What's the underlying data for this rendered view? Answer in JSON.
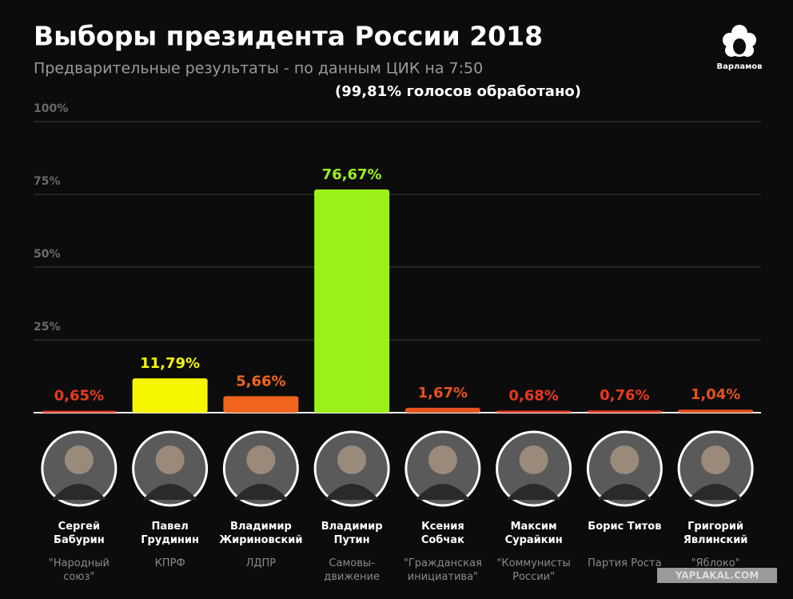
{
  "chart_data": {
    "type": "bar",
    "title": "Выборы президента России 2018",
    "subtitle": "Предварительные результаты - по данным ЦИК на 7:50",
    "note": "(99,81%  голосов обработано)",
    "logo": "Варламов",
    "watermark": "YAPLAKAL.COM",
    "categories": [
      "Сергей Бабурин",
      "Павел Грудинин",
      "Владимир Жириновский",
      "Владимир Путин",
      "Ксения Собчак",
      "Максим Сурайкин",
      "Борис Титов",
      "Григорий Явлинский"
    ],
    "parties": [
      "\"Народный союз\"",
      "КПРФ",
      "ЛДПР",
      "Самовы-движение",
      "\"Гражданская инициатива\"",
      "\"Коммунисты России\"",
      "Партия Роста",
      "\"Яблоко\""
    ],
    "values": [
      0.65,
      11.79,
      5.66,
      76.67,
      1.67,
      0.68,
      0.76,
      1.04
    ],
    "value_labels": [
      "0,65%",
      "11,79%",
      "5,66%",
      "76,67%",
      "1,67%",
      "0,68%",
      "0,76%",
      "1,04%"
    ],
    "colors": [
      "#e8391e",
      "#f6f600",
      "#f0641e",
      "#9bf01a",
      "#e4521e",
      "#e8391e",
      "#e8391e",
      "#e4521e"
    ],
    "ylim": [
      0,
      100
    ],
    "yticks": [
      {
        "value": 25,
        "label": "25%"
      },
      {
        "value": 50,
        "label": "50%"
      },
      {
        "value": 75,
        "label": "75%"
      },
      {
        "value": 100,
        "label": "100%"
      }
    ],
    "grid": true
  }
}
